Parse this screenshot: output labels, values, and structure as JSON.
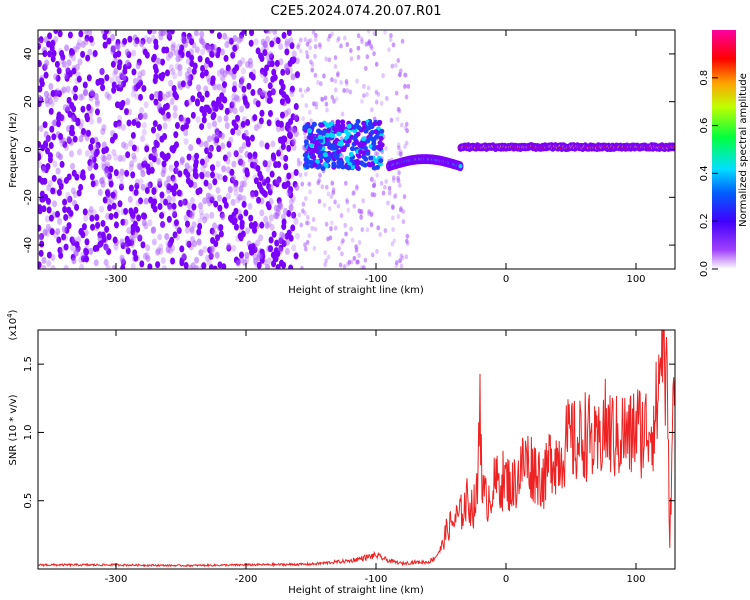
{
  "title": "C2E5.2024.074.20.07.R01",
  "chart_data": [
    {
      "type": "heatmap",
      "xlabel": "Height of straight line (km)",
      "ylabel": "Frequency (Hz)",
      "xlim": [
        -360,
        130
      ],
      "ylim": [
        -50,
        50
      ],
      "xticks": [
        -300,
        -200,
        -100,
        0,
        100
      ],
      "yticks": [
        -40,
        -20,
        0,
        20,
        40
      ],
      "colorbar": {
        "label": "Normalized spectral amplitude",
        "range": [
          0,
          1
        ],
        "ticks": [
          "0.0",
          "0.2",
          "0.4",
          "0.6",
          "0.8"
        ],
        "tick_values": [
          0.0,
          0.2,
          0.4,
          0.6,
          0.8
        ],
        "colormap": [
          "#ffffff",
          "#8000ff",
          "#0000ff",
          "#00ffff",
          "#00ff00",
          "#ffff00",
          "#ff0000",
          "#ff00ff"
        ]
      },
      "regions": [
        {
          "x_range": [
            -360,
            -160
          ],
          "description": "broadband noise",
          "mean_amplitude": 0.15
        },
        {
          "x_range": [
            -155,
            -95
          ],
          "freq_range": [
            -8,
            12
          ],
          "mean_amplitude": 0.35
        },
        {
          "x_range": [
            -90,
            -35
          ],
          "freq_center": -5,
          "mean_amplitude": 0.55
        },
        {
          "x_range": [
            -35,
            130
          ],
          "freq_center": 1,
          "mean_amplitude": 0.9
        }
      ]
    },
    {
      "type": "line",
      "xlabel": "Height of straight line (km)",
      "ylabel": "SNR (10 * v/v)",
      "y_multiplier": "(x10",
      "y_multiplier_exp": "4",
      "y_multiplier_close": ")",
      "xlim": [
        -360,
        130
      ],
      "ylim": [
        0,
        17500
      ],
      "xticks": [
        -300,
        -200,
        -100,
        0,
        100
      ],
      "yticks": [
        5000,
        10000,
        15000
      ],
      "ytick_labels": [
        "0.5",
        "1.0",
        "1.5"
      ],
      "color": "#ee2222",
      "series": [
        {
          "x": [
            -360,
            -300,
            -250,
            -200,
            -150,
            -120,
            -110,
            -100,
            -90,
            -80,
            -70,
            -60,
            -55,
            -50,
            -45,
            -40,
            -35,
            -30,
            -25,
            -22,
            -20,
            -18,
            -15,
            -10,
            -5,
            0,
            5,
            10,
            15,
            20,
            25,
            30,
            35,
            40,
            45,
            50,
            55,
            60,
            65,
            70,
            75,
            80,
            85,
            90,
            95,
            100,
            105,
            110,
            115,
            118,
            120,
            122,
            124,
            126,
            128,
            130
          ],
          "y": [
            300,
            300,
            250,
            300,
            350,
            600,
            800,
            1000,
            600,
            400,
            500,
            500,
            800,
            1500,
            3000,
            3500,
            4000,
            5000,
            4500,
            5500,
            13500,
            5500,
            5000,
            6000,
            6500,
            6500,
            6000,
            7000,
            8000,
            7500,
            7000,
            6500,
            8500,
            8000,
            9000,
            9500,
            9000,
            10000,
            9500,
            8500,
            10500,
            10000,
            9500,
            10000,
            9500,
            10500,
            10000,
            10500,
            11000,
            14000,
            17500,
            15000,
            12500,
            2000,
            10000,
            14000
          ]
        }
      ]
    }
  ]
}
